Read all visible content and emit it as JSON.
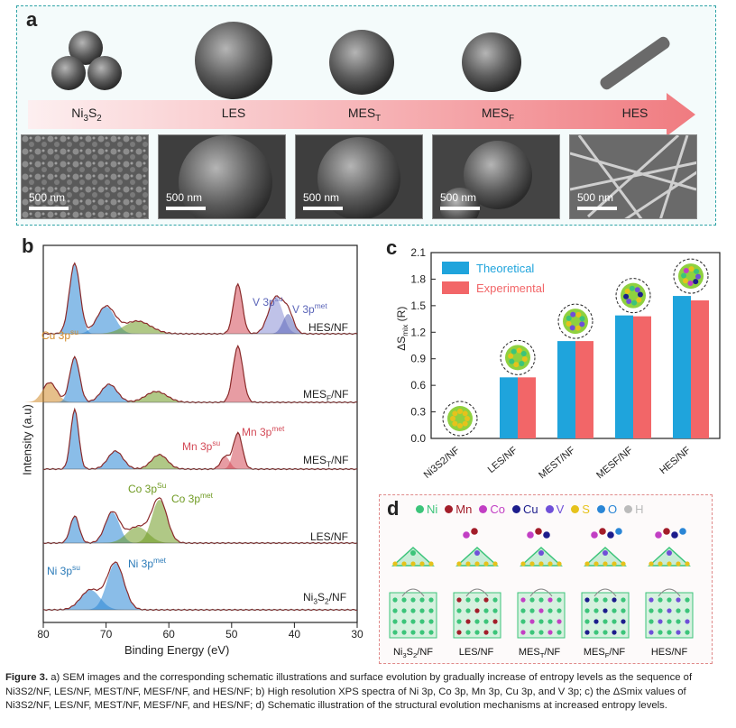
{
  "panel_a": {
    "label": "a",
    "stages": [
      "Ni3S2",
      "LES",
      "MEST",
      "MESF",
      "HES"
    ],
    "scale_bar": "500 nm"
  },
  "panel_b": {
    "label": "b",
    "xlabel": "Binding Energy (eV)",
    "ylabel": "Intensity (a.u)",
    "ticks": [
      "80",
      "70",
      "60",
      "50",
      "40",
      "30"
    ],
    "samples": [
      "HES/NF",
      "MESF/NF",
      "MEST/NF",
      "LES/NF",
      "Ni3S2/NF"
    ],
    "annotations": {
      "v3psu": "V 3p",
      "v3psu_sup": "su",
      "v3pmet": "V 3p",
      "v3pmet_sup": "met",
      "cu3psu": "Cu 3p",
      "cu3psu_sup": "su",
      "mn3pmet": "Mn 3p",
      "mn3pmet_sup": "met",
      "mn3psu": "Mn 3p",
      "mn3psu_sup": "su",
      "co3psu": "Co 3p",
      "co3psu_sup": "Su",
      "co3pmet": "Co 3p",
      "co3pmet_sup": "met",
      "ni3psu": "Ni 3p",
      "ni3psu_sup": "su",
      "ni3pmet": "Ni 3p",
      "ni3pmet_sup": "met"
    }
  },
  "chart_data": {
    "type": "bar",
    "label": "c",
    "categories": [
      "Ni3S2/NF",
      "LES/NF",
      "MEST/NF",
      "MESF/NF",
      "HES/NF"
    ],
    "series": [
      {
        "name": "Theoretical",
        "color": "#1fa4dc",
        "values": [
          0.0,
          0.69,
          1.1,
          1.39,
          1.61
        ]
      },
      {
        "name": "Experimental",
        "color": "#f26668",
        "values": [
          0.0,
          0.69,
          1.1,
          1.38,
          1.56
        ]
      }
    ],
    "ylabel": "ΔSmix (R)",
    "ylim": [
      0.0,
      2.1
    ],
    "yticks": [
      "0.0",
      "0.3",
      "0.6",
      "0.9",
      "1.2",
      "1.5",
      "1.8",
      "2.1"
    ],
    "legend": "top-left"
  },
  "panel_d": {
    "label": "d",
    "legend": [
      {
        "name": "Ni",
        "color": "#3cc47a"
      },
      {
        "name": "Mn",
        "color": "#a31d2a"
      },
      {
        "name": "Co",
        "color": "#c23fc4"
      },
      {
        "name": "Cu",
        "color": "#1c1c8c"
      },
      {
        "name": "V",
        "color": "#6f4fd8"
      },
      {
        "name": "S",
        "color": "#e6c21c"
      },
      {
        "name": "O",
        "color": "#2a86d6"
      },
      {
        "name": "H",
        "color": "#bbbbbb"
      }
    ],
    "structures": [
      "Ni3S2/NF",
      "LES/NF",
      "MEST/NF",
      "MESF/NF",
      "HES/NF"
    ]
  },
  "caption": {
    "lead": "Figure 3.",
    "text": "a) SEM images and the corresponding schematic illustrations and surface evolution by gradually increase of entropy levels as the sequence of Ni3S2/NF, LES/NF, MEST/NF, MESF/NF, and HES/NF; b) High resolution XPS spectra of Ni 3p, Co 3p, Mn 3p, Cu 3p, and V 3p; c) the ΔSmix values of Ni3S2/NF, LES/NF, MEST/NF, MESF/NF, and HES/NF; d) Schematic illustration of the structural evolution mechanisms at increased entropy levels."
  }
}
